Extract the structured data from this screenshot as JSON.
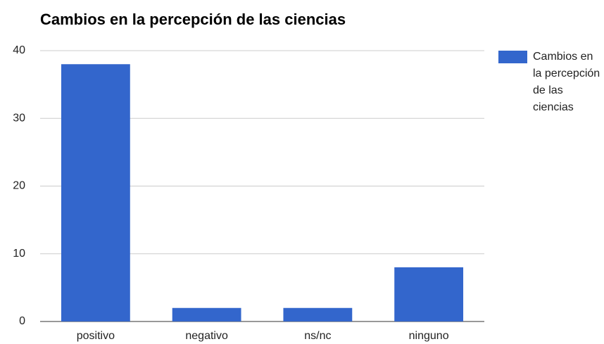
{
  "chart_data": {
    "type": "bar",
    "title": "Cambios en la percepción de las ciencias",
    "categories": [
      "positivo",
      "negativo",
      "ns/nc",
      "ninguno"
    ],
    "series": [
      {
        "name": "Cambios en la percepción de las ciencias",
        "color": "#3366cc",
        "values": [
          38,
          2,
          2,
          8
        ]
      }
    ],
    "ylim": [
      0,
      40
    ],
    "yticks": [
      0,
      10,
      20,
      30,
      40
    ],
    "grid": true,
    "legend": "right"
  }
}
